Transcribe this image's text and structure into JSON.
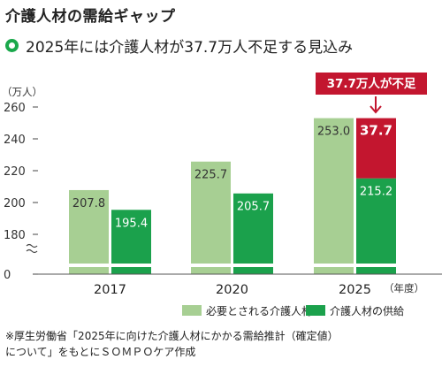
{
  "header": {
    "title": "介護人材の需給ギャップ",
    "subtitle": "2025年には介護人材が37.7万人不足する見込み"
  },
  "chart_data": {
    "type": "bar",
    "categories": [
      "2017",
      "2020",
      "2025"
    ],
    "xlabel": "（年度）",
    "ylabel": "（万人）",
    "axis_break": true,
    "ylim": [
      180,
      260
    ],
    "yticks": [
      "260",
      "240",
      "220",
      "200",
      "180",
      "0"
    ],
    "series": [
      {
        "name": "必要とされる介護人材",
        "values": [
          207.8,
          225.7,
          253.0
        ],
        "labels": [
          "207.8",
          "225.7",
          "253.0"
        ],
        "color": "#a7cf93"
      },
      {
        "name": "介護人材の供給",
        "values": [
          195.4,
          205.7,
          215.2
        ],
        "labels": [
          "195.4",
          "205.7",
          "215.2"
        ],
        "color": "#1ba14c"
      }
    ],
    "gap": {
      "category": "2025",
      "value": 37.7,
      "label": "37.7",
      "color": "#c3162f"
    },
    "annotation": "37.7万人が不足",
    "legend_position": "bottom-right",
    "grid": false
  },
  "footnote": {
    "line1": "※厚生労働省「2025年に向けた介護人材にかかる需給推計（確定値）",
    "line2": "について」をもとにＳＯＭＰＯケア作成"
  }
}
